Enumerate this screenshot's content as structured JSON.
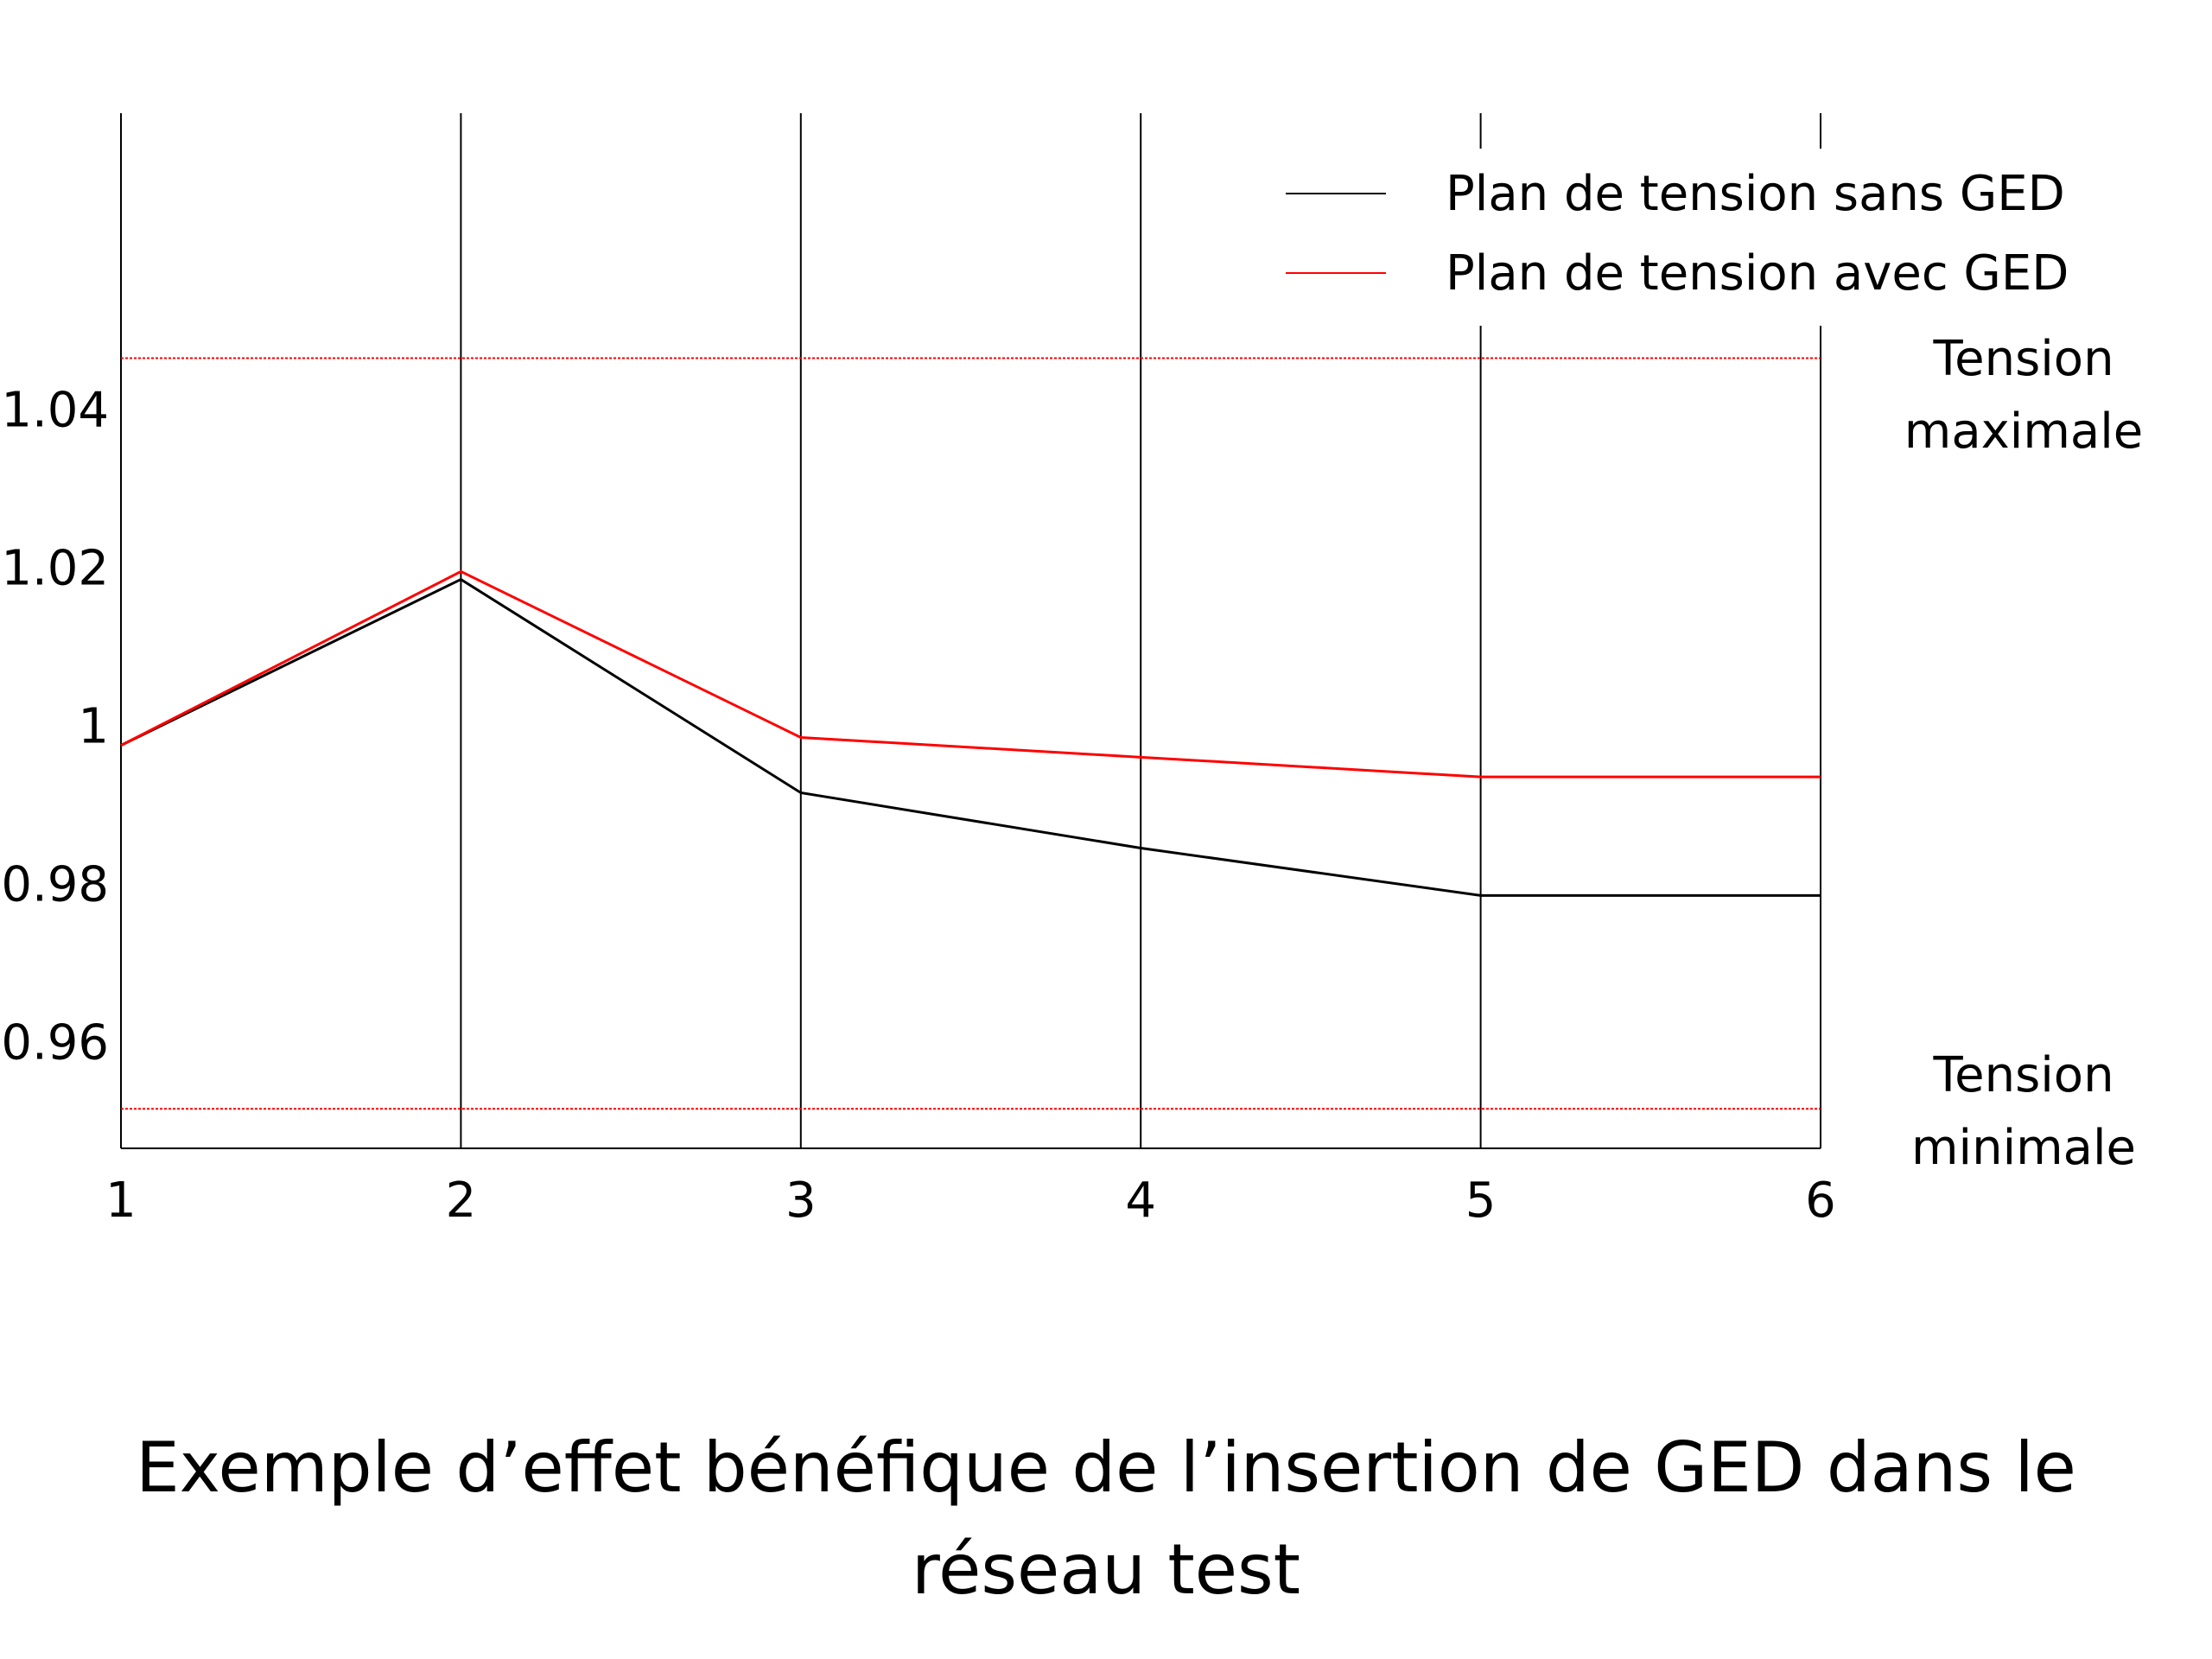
{
  "chart_data": {
    "type": "line",
    "title": "Exemple d’effet bénéfique de l’insertion de GED dans le réseau test",
    "x": [
      1,
      2,
      3,
      4,
      5,
      6
    ],
    "xlim": [
      1,
      6
    ],
    "xticks": [
      1,
      2,
      3,
      4,
      5,
      6
    ],
    "ylim": [
      0.947,
      1.078
    ],
    "yticks": [
      0.96,
      0.98,
      1,
      1.02,
      1.04
    ],
    "grid": true,
    "legend": "upper right",
    "series": [
      {
        "name": "Plan de tension sans GED",
        "color": "#000000",
        "values": [
          0.998,
          1.019,
          0.992,
          0.985,
          0.979,
          0.979
        ]
      },
      {
        "name": "Plan de tension avec GED",
        "color": "#ff0000",
        "values": [
          0.998,
          1.02,
          0.999,
          0.9965,
          0.994,
          0.994
        ]
      }
    ],
    "reference_lines": [
      {
        "label": "Tension maximale",
        "value": 1.047,
        "color": "#ff0000"
      },
      {
        "label": "Tension minimale",
        "value": 0.952,
        "color": "#ff0000"
      }
    ]
  }
}
